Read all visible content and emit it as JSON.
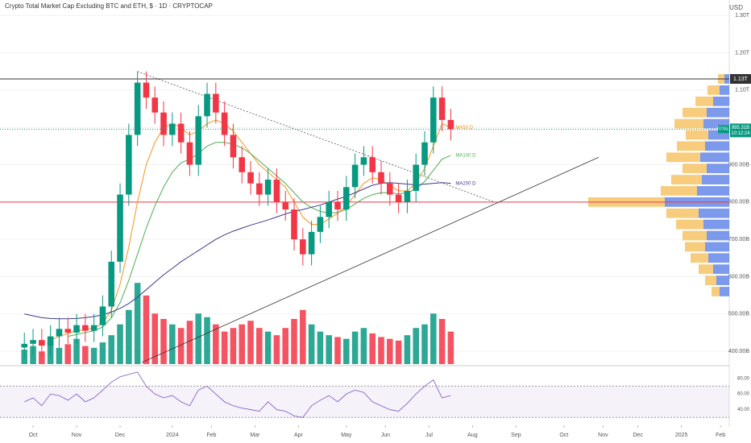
{
  "chart_data": {
    "type": "candlestick",
    "title": "Crypto Total Market Cap Excluding BTC and ETH, $ · 1D · CRYPTOCAP",
    "currency": "USD",
    "up_color": "#089981",
    "down_color": "#f23645",
    "xlim": [
      -2.8,
      81
    ],
    "xticks": [
      {
        "value": 1,
        "label": "Oct"
      },
      {
        "value": 6,
        "label": "Nov"
      },
      {
        "value": 11,
        "label": "Dec"
      },
      {
        "value": 17,
        "label": "2024"
      },
      {
        "value": 21.5,
        "label": "Feb"
      },
      {
        "value": 26.5,
        "label": "Mar"
      },
      {
        "value": 31.5,
        "label": "Apr"
      },
      {
        "value": 37,
        "label": "May"
      },
      {
        "value": 41.5,
        "label": "Jun"
      },
      {
        "value": 46.5,
        "label": "Jul"
      },
      {
        "value": 51.5,
        "label": "Aug"
      },
      {
        "value": 56.5,
        "label": "Sep"
      },
      {
        "value": 62,
        "label": "Oct"
      },
      {
        "value": 66.5,
        "label": "Nov"
      },
      {
        "value": 70.5,
        "label": "Dec"
      },
      {
        "value": 75.5,
        "label": "2025"
      },
      {
        "value": 80,
        "label": "Feb"
      }
    ],
    "ylim": [
      370,
      1320
    ],
    "yticks": [
      {
        "value": 1300,
        "label": "1.30T"
      },
      {
        "value": 1200,
        "label": "1.20T"
      },
      {
        "value": 1100,
        "label": "1.10T"
      },
      {
        "value": 1000,
        "label": "1.00T"
      },
      {
        "value": 900,
        "label": "900.00B"
      },
      {
        "value": 800,
        "label": "800.00B"
      },
      {
        "value": 700,
        "label": "700.00B"
      },
      {
        "value": 600,
        "label": "600.00B"
      },
      {
        "value": 500,
        "label": "500.00B"
      },
      {
        "value": 400,
        "label": "400.00B"
      }
    ],
    "open": [
      410,
      420,
      430,
      415,
      440,
      460,
      450,
      470,
      455,
      470,
      520,
      640,
      820,
      980,
      1120,
      1080,
      1040,
      980,
      1010,
      960,
      900,
      1030,
      1090,
      1040,
      980,
      920,
      880,
      850,
      820,
      860,
      800,
      780,
      700,
      660,
      720,
      760,
      800,
      780,
      840,
      900,
      920,
      880,
      850,
      820,
      800,
      830,
      900,
      960,
      1080,
      1020
    ],
    "high": [
      450,
      460,
      460,
      470,
      490,
      490,
      500,
      500,
      500,
      550,
      670,
      850,
      1010,
      1150,
      1150,
      1110,
      1070,
      1040,
      1040,
      990,
      1060,
      1120,
      1120,
      1070,
      1010,
      950,
      910,
      880,
      890,
      890,
      830,
      810,
      730,
      750,
      790,
      830,
      830,
      870,
      930,
      950,
      950,
      910,
      880,
      850,
      860,
      930,
      990,
      1110,
      1110,
      1050
    ],
    "low": [
      380,
      390,
      385,
      385,
      410,
      420,
      420,
      425,
      425,
      440,
      490,
      610,
      790,
      950,
      1050,
      1010,
      950,
      950,
      930,
      870,
      870,
      1000,
      1010,
      950,
      890,
      850,
      820,
      790,
      790,
      770,
      750,
      670,
      630,
      630,
      690,
      730,
      750,
      750,
      810,
      870,
      850,
      820,
      790,
      770,
      770,
      800,
      870,
      930,
      990,
      965
    ],
    "close": [
      420,
      430,
      415,
      440,
      460,
      450,
      470,
      455,
      470,
      520,
      640,
      820,
      980,
      1120,
      1080,
      1040,
      980,
      1010,
      960,
      900,
      1030,
      1090,
      1040,
      980,
      920,
      880,
      850,
      820,
      860,
      800,
      780,
      700,
      660,
      720,
      760,
      800,
      780,
      840,
      900,
      920,
      880,
      850,
      820,
      800,
      830,
      900,
      960,
      1080,
      1020,
      995
    ],
    "moving_averages": [
      {
        "name": "MA50 D",
        "color": "#f7931a",
        "values": [
          null,
          null,
          null,
          430,
          440,
          448,
          455,
          458,
          462,
          475,
          510,
          580,
          680,
          800,
          900,
          960,
          1000,
          1010,
          1000,
          980,
          990,
          1010,
          1020,
          1010,
          990,
          960,
          930,
          900,
          880,
          860,
          840,
          800,
          760,
          740,
          740,
          755,
          770,
          790,
          820,
          850,
          865,
          860,
          845,
          830,
          830,
          850,
          890,
          950,
          1010,
          1000
        ]
      },
      {
        "name": "MA100 D",
        "color": "#4caf50",
        "values": [
          null,
          null,
          null,
          null,
          null,
          440,
          445,
          450,
          455,
          465,
          490,
          530,
          590,
          660,
          730,
          790,
          840,
          880,
          905,
          915,
          930,
          950,
          960,
          960,
          955,
          945,
          930,
          910,
          890,
          870,
          850,
          825,
          800,
          785,
          775,
          770,
          772,
          780,
          795,
          810,
          820,
          825,
          825,
          822,
          825,
          835,
          855,
          885,
          915,
          925
        ]
      },
      {
        "name": "MA200 D",
        "color": "#3f3a8c",
        "values": [
          500,
          495,
          490,
          488,
          487,
          487,
          488,
          490,
          493,
          498,
          505,
          515,
          528,
          545,
          565,
          585,
          605,
          622,
          640,
          655,
          670,
          685,
          700,
          712,
          722,
          730,
          738,
          745,
          752,
          760,
          768,
          775,
          780,
          786,
          792,
          800,
          808,
          815,
          825,
          835,
          845,
          850,
          852,
          850,
          848,
          846,
          848,
          850,
          852,
          850
        ]
      }
    ],
    "levels": [
      {
        "value": 1130,
        "color": "#333333",
        "label": "1.13T"
      },
      {
        "value": 800,
        "color": "#f23645"
      }
    ],
    "trendlines": [
      {
        "points": [
          [
            13,
            1150
          ],
          [
            54,
            800
          ]
        ],
        "color": "#555555",
        "dashed": true
      },
      {
        "points": [
          [
            13.5,
            370
          ],
          [
            66,
            920
          ]
        ],
        "color": "#333333",
        "dashed": false
      }
    ],
    "last": {
      "value": 995.31,
      "label": "995.31B",
      "countdown": "10:12:24",
      "symbol": "TOTAL3",
      "color": "#089981"
    },
    "volume": {
      "ylim": [
        0,
        50
      ],
      "values": [
        8,
        10,
        7,
        12,
        9,
        11,
        14,
        10,
        9,
        12,
        16,
        22,
        30,
        45,
        38,
        28,
        25,
        22,
        20,
        24,
        28,
        26,
        22,
        18,
        20,
        22,
        24,
        20,
        18,
        16,
        20,
        25,
        30,
        22,
        18,
        16,
        15,
        14,
        18,
        20,
        17,
        15,
        14,
        13,
        16,
        20,
        22,
        28,
        25,
        18
      ]
    },
    "volume_profile": {
      "levels": [
        560,
        590,
        620,
        650,
        680,
        710,
        740,
        770,
        800,
        830,
        860,
        890,
        920,
        950,
        980,
        1010,
        1040,
        1070,
        1100,
        1130
      ],
      "up": [
        10,
        14,
        18,
        22,
        25,
        30,
        34,
        40,
        95,
        45,
        38,
        30,
        42,
        35,
        28,
        36,
        30,
        22,
        15,
        8
      ],
      "down": [
        12,
        16,
        20,
        26,
        30,
        28,
        32,
        38,
        80,
        40,
        34,
        28,
        36,
        30,
        26,
        32,
        28,
        20,
        12,
        6
      ],
      "up_color": "#f5c15c",
      "down_color": "#5b7fe6",
      "xlim": [
        0,
        180
      ]
    },
    "rsi": {
      "ylim": [
        20,
        90
      ],
      "yticks": [
        {
          "value": 80,
          "label": "80.00"
        },
        {
          "value": 60,
          "label": "60.00"
        },
        {
          "value": 40,
          "label": "40.00"
        }
      ],
      "band": [
        70,
        30
      ],
      "color": "#7e57c2",
      "values": [
        50,
        55,
        45,
        60,
        58,
        52,
        60,
        50,
        55,
        65,
        75,
        82,
        85,
        88,
        70,
        60,
        55,
        58,
        50,
        45,
        65,
        70,
        60,
        50,
        45,
        42,
        40,
        38,
        50,
        40,
        38,
        32,
        30,
        45,
        52,
        58,
        50,
        60,
        65,
        62,
        50,
        45,
        40,
        38,
        48,
        60,
        70,
        78,
        55,
        58
      ]
    }
  }
}
